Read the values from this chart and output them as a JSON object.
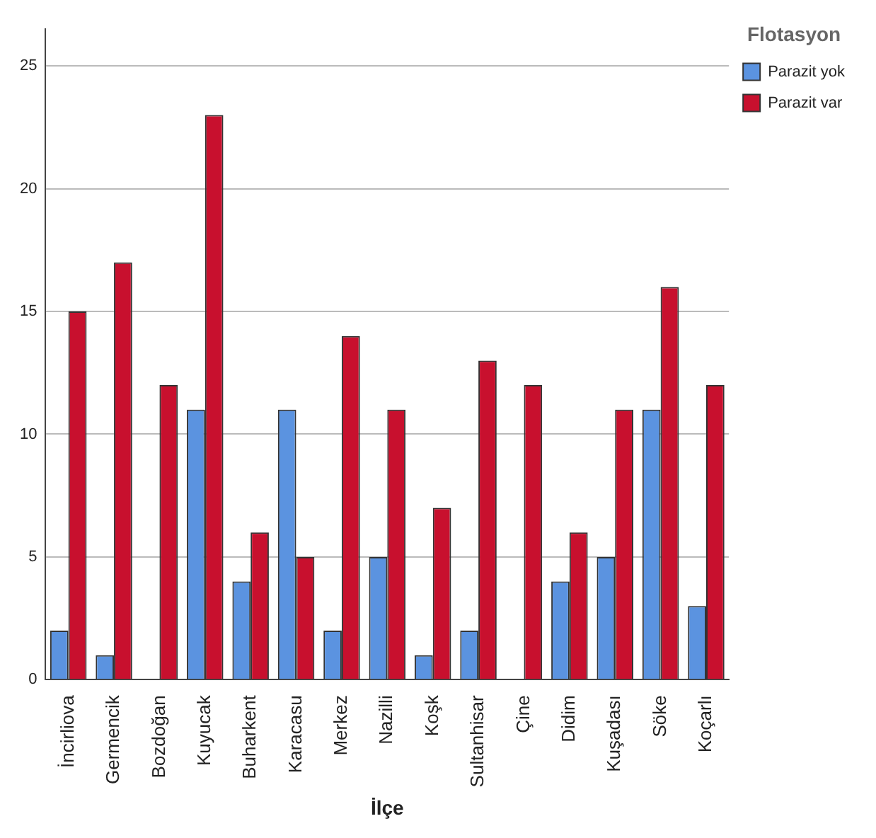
{
  "chart_data": {
    "type": "bar",
    "xlabel": "İlçe",
    "legend_title": "Flotasyon",
    "categories": [
      "İncirliova",
      "Germencik",
      "Bozdoğan",
      "Kuyucak",
      "Buharkent",
      "Karacasu",
      "Merkez",
      "Nazilli",
      "Koşk",
      "Sultanhisar",
      "Çine",
      "Didim",
      "Kuşadası",
      "Söke",
      "Koçarlı"
    ],
    "series": [
      {
        "name": "Parazit yok",
        "color": "#5b93e0",
        "values": [
          2,
          1,
          0,
          11,
          4,
          11,
          2,
          5,
          1,
          2,
          0,
          4,
          5,
          11,
          3
        ]
      },
      {
        "name": "Parazit var",
        "color": "#c8102e",
        "values": [
          15,
          17,
          12,
          23,
          6,
          5,
          14,
          11,
          7,
          13,
          12,
          6,
          11,
          16,
          12
        ]
      }
    ],
    "ylim": [
      0,
      26.5
    ],
    "yticks": [
      0,
      5,
      10,
      15,
      20,
      25
    ],
    "grid": "y",
    "legend": "top right"
  }
}
